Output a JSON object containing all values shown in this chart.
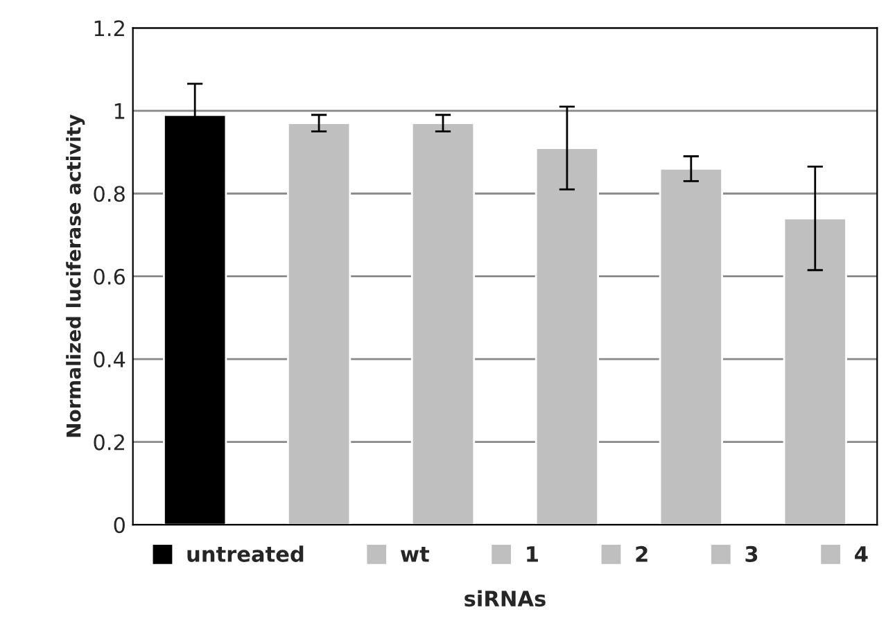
{
  "chart_data": {
    "type": "bar",
    "xlabel": "siRNAs",
    "ylabel": "Normalized luciferase activity",
    "categories": [
      null,
      null,
      null,
      null,
      null,
      null
    ],
    "series": [
      {
        "name": "untreated",
        "color": "#000000",
        "values": [
          0.99,
          null,
          null,
          null,
          null,
          null
        ],
        "errors": [
          0.075,
          null,
          null,
          null,
          null,
          null
        ]
      },
      {
        "name": "wt",
        "color": "#bfbfbf",
        "values": [
          null,
          0.97,
          null,
          null,
          null,
          null
        ],
        "errors": [
          null,
          0.02,
          null,
          null,
          null,
          null
        ]
      },
      {
        "name": "1",
        "color": "#bfbfbf",
        "values": [
          null,
          null,
          0.97,
          null,
          null,
          null
        ],
        "errors": [
          null,
          null,
          0.02,
          null,
          null,
          null
        ]
      },
      {
        "name": "2",
        "color": "#bfbfbf",
        "values": [
          null,
          null,
          null,
          0.91,
          null,
          null
        ],
        "errors": [
          null,
          null,
          null,
          0.1,
          null,
          null
        ]
      },
      {
        "name": "3",
        "color": "#bfbfbf",
        "values": [
          null,
          null,
          null,
          null,
          0.86,
          null
        ],
        "errors": [
          null,
          null,
          null,
          null,
          0.03,
          null
        ]
      },
      {
        "name": "4",
        "color": "#bfbfbf",
        "values": [
          null,
          null,
          null,
          null,
          null,
          0.74
        ],
        "errors": [
          null,
          null,
          null,
          null,
          null,
          0.125
        ]
      }
    ],
    "ylim": [
      0,
      1.2
    ],
    "yticks": [
      0,
      0.2,
      0.4,
      0.6,
      0.8,
      1,
      1.2
    ],
    "grid": "y",
    "legend": "bottom",
    "tick_labels": "y"
  }
}
